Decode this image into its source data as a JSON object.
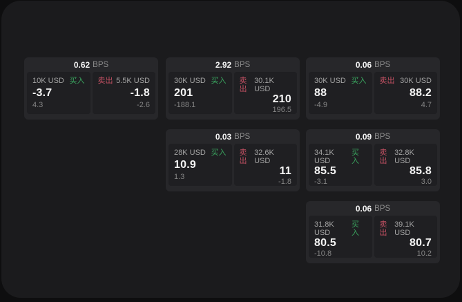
{
  "labels": {
    "bps_unit": "BPS",
    "buy": "买入",
    "sell": "卖出"
  },
  "colors": {
    "outer_background": "#0e0e0f",
    "panel_background": "#1b1b1d",
    "card_background": "#27272a",
    "tile_background": "#1f1f22",
    "buy_green": "#3aa55f",
    "sell_red": "#c25062",
    "value_white": "#f5f5f5",
    "muted_gray": "#8d8d8d"
  },
  "cards": [
    {
      "bps": "0.62",
      "buy": {
        "size": "10K USD",
        "label": "买入",
        "value": "-3.7",
        "sub": "4.3"
      },
      "sell": {
        "label": "卖出",
        "size": "5.5K USD",
        "value": "-1.8",
        "sub": "-2.6"
      }
    },
    {
      "bps": "2.92",
      "buy": {
        "size": "30K USD",
        "label": "买入",
        "value": "201",
        "sub": "-188.1"
      },
      "sell": {
        "label": "卖出",
        "size": "30.1K USD",
        "value": "210",
        "sub": "196.5"
      }
    },
    {
      "bps": "0.06",
      "buy": {
        "size": "30K USD",
        "label": "买入",
        "value": "88",
        "sub": "-4.9"
      },
      "sell": {
        "label": "卖出",
        "size": "30K USD",
        "value": "88.2",
        "sub": "4.7"
      }
    },
    {
      "bps": "0.03",
      "buy": {
        "size": "28K USD",
        "label": "买入",
        "value": "10.9",
        "sub": "1.3"
      },
      "sell": {
        "label": "卖出",
        "size": "32.6K USD",
        "value": "11",
        "sub": "-1.8"
      }
    },
    {
      "bps": "0.09",
      "buy": {
        "size": "34.1K USD",
        "label": "买入",
        "value": "85.5",
        "sub": "-3.1"
      },
      "sell": {
        "label": "卖出",
        "size": "32.8K USD",
        "value": "85.8",
        "sub": "3.0"
      }
    },
    {
      "bps": "0.06",
      "buy": {
        "size": "31.8K USD",
        "label": "买入",
        "value": "80.5",
        "sub": "-10.8"
      },
      "sell": {
        "label": "卖出",
        "size": "39.1K USD",
        "value": "80.7",
        "sub": "10.2"
      }
    }
  ]
}
